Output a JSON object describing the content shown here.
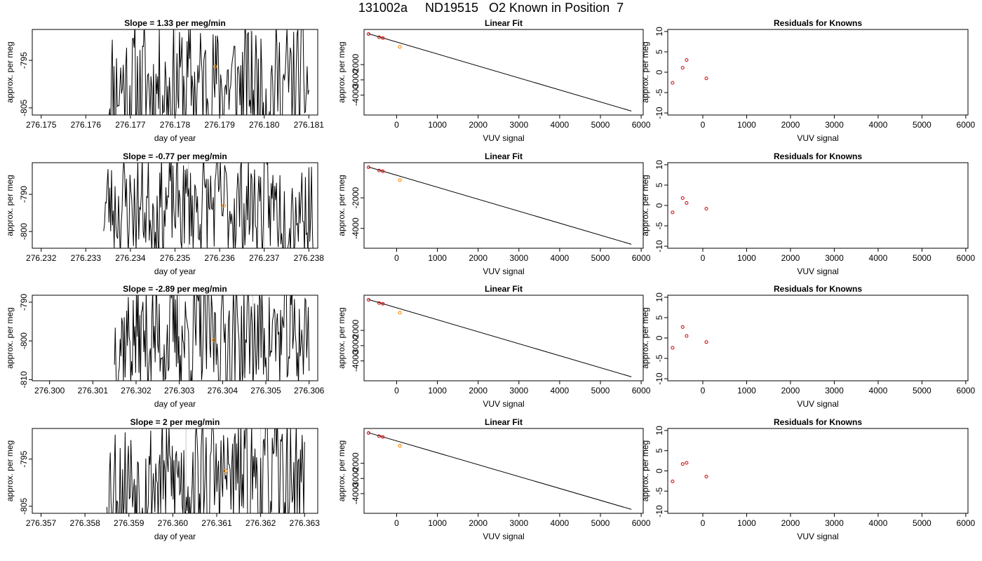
{
  "figure": {
    "title": "131002a     ND19515   O2 Known in Position  7"
  },
  "colors": {
    "line": "#000000",
    "fit_point": "#ff8c00",
    "residual_point": "#cc0000",
    "gridline": "#c8c8c8"
  },
  "chart_data": [
    {
      "type": "line",
      "title": "Slope =  1.33  per meg/min",
      "xlabel": "day of year",
      "ylabel": "approx. per meg",
      "xlim": [
        276.1748,
        276.1812
      ],
      "ylim": [
        -806.5,
        -788.5
      ],
      "xticks": [
        "276.175",
        "276.176",
        "276.177",
        "276.178",
        "276.179",
        "276.180",
        "276.181"
      ],
      "xtick_values": [
        276.175,
        276.176,
        276.177,
        276.178,
        276.179,
        276.18,
        276.181
      ],
      "yticks": [
        "-805",
        "-795"
      ],
      "ytick_values": [
        -805,
        -795
      ],
      "vlines": [
        276.178,
        276.1797
      ],
      "series_start": 276.1765,
      "series_end": 276.181,
      "series_center": -800,
      "series_amplitude": 14,
      "seed": 11,
      "highlight_point": {
        "x": 276.1789,
        "y": -796.3
      }
    },
    {
      "type": "scatter",
      "title": "Linear Fit",
      "xlabel": "VUV signal",
      "ylabel": "approx. per meg",
      "xlim": [
        -800,
        6050
      ],
      "ylim": [
        -5300,
        300
      ],
      "xticks": [
        "0",
        "1000",
        "2000",
        "3000",
        "4000",
        "5000",
        "6000"
      ],
      "xtick_values": [
        0,
        1000,
        2000,
        3000,
        4000,
        5000,
        6000
      ],
      "yticks": [
        "-2000",
        "-3000",
        "-4000"
      ],
      "ytick_values": [
        -2000,
        -3000,
        -4000
      ],
      "points": [
        {
          "x": -690,
          "y": 0
        },
        {
          "x": -430,
          "y": -210
        },
        {
          "x": -340,
          "y": -260
        }
      ],
      "highlight_points": [
        {
          "x": 80,
          "y": -840
        }
      ],
      "fit_line": [
        {
          "x": -690,
          "y": 20
        },
        {
          "x": 5760,
          "y": -5040
        }
      ]
    },
    {
      "type": "scatter",
      "title": "Residuals for Knowns",
      "xlabel": "VUV signal",
      "ylabel": "approx. per meg",
      "xlim": [
        -800,
        6050
      ],
      "ylim": [
        -10.5,
        10.5
      ],
      "xticks": [
        "0",
        "1000",
        "2000",
        "3000",
        "4000",
        "5000",
        "6000"
      ],
      "xtick_values": [
        0,
        1000,
        2000,
        3000,
        4000,
        5000,
        6000
      ],
      "yticks": [
        "-10",
        "-5",
        "0",
        "5",
        "10"
      ],
      "ytick_values": [
        -10,
        -5,
        0,
        5,
        10
      ],
      "points": [
        {
          "x": -690,
          "y": -2.6
        },
        {
          "x": -460,
          "y": 1.1
        },
        {
          "x": -370,
          "y": 3.0
        },
        {
          "x": 80,
          "y": -1.5
        }
      ]
    },
    {
      "type": "line",
      "title": "Slope =  -0.77  per meg/min",
      "xlabel": "day of year",
      "ylabel": "approx. per meg",
      "xlim": [
        276.2318,
        276.2382
      ],
      "ylim": [
        -804.5,
        -781.5
      ],
      "xticks": [
        "276.232",
        "276.233",
        "276.234",
        "276.235",
        "276.236",
        "276.237",
        "276.238"
      ],
      "xtick_values": [
        276.232,
        276.233,
        276.234,
        276.235,
        276.236,
        276.237,
        276.238
      ],
      "yticks": [
        "-800",
        "-790"
      ],
      "ytick_values": [
        -800,
        -790
      ],
      "vlines": [
        276.2353,
        276.237
      ],
      "series_start": 276.2334,
      "series_end": 276.2381,
      "series_center": -793,
      "series_amplitude": 15,
      "seed": 23,
      "highlight_point": {
        "x": 276.2361,
        "y": -793.0
      }
    },
    {
      "type": "scatter",
      "title": "Linear Fit",
      "xlabel": "VUV signal",
      "ylabel": "approx. per meg",
      "xlim": [
        -800,
        6050
      ],
      "ylim": [
        -5300,
        300
      ],
      "xticks": [
        "0",
        "1000",
        "2000",
        "3000",
        "4000",
        "5000",
        "6000"
      ],
      "xtick_values": [
        0,
        1000,
        2000,
        3000,
        4000,
        5000,
        6000
      ],
      "yticks": [
        "-2000",
        "-4000"
      ],
      "ytick_values": [
        -2000,
        -4000
      ],
      "points": [
        {
          "x": -690,
          "y": 0
        },
        {
          "x": -430,
          "y": -210
        },
        {
          "x": -340,
          "y": -260
        }
      ],
      "highlight_points": [
        {
          "x": 80,
          "y": -840
        }
      ],
      "fit_line": [
        {
          "x": -690,
          "y": 20
        },
        {
          "x": 5760,
          "y": -5040
        }
      ]
    },
    {
      "type": "scatter",
      "title": "Residuals for Knowns",
      "xlabel": "VUV signal",
      "ylabel": "approx. per meg",
      "xlim": [
        -800,
        6050
      ],
      "ylim": [
        -10.5,
        10.5
      ],
      "xticks": [
        "0",
        "1000",
        "2000",
        "3000",
        "4000",
        "5000",
        "6000"
      ],
      "xtick_values": [
        0,
        1000,
        2000,
        3000,
        4000,
        5000,
        6000
      ],
      "yticks": [
        "-10",
        "-5",
        "0",
        "5",
        "10"
      ],
      "ytick_values": [
        -10,
        -5,
        0,
        5,
        10
      ],
      "points": [
        {
          "x": -690,
          "y": -1.7
        },
        {
          "x": -460,
          "y": 1.8
        },
        {
          "x": -370,
          "y": 0.6
        },
        {
          "x": 80,
          "y": -0.8
        }
      ]
    },
    {
      "type": "line",
      "title": "Slope =  -2.89  per meg/min",
      "xlabel": "day of year",
      "ylabel": "approx. per meg",
      "xlim": [
        276.2996,
        276.3062
      ],
      "ylim": [
        -810.3,
        -788.2
      ],
      "xticks": [
        "276.300",
        "276.301",
        "276.302",
        "276.303",
        "276.304",
        "276.305",
        "276.306"
      ],
      "xtick_values": [
        276.3,
        276.301,
        276.302,
        276.303,
        276.304,
        276.305,
        276.306
      ],
      "yticks": [
        "-810",
        "-800",
        "-790"
      ],
      "ytick_values": [
        -810,
        -800,
        -790
      ],
      "vlines": [
        276.303,
        276.3047
      ],
      "series_start": 276.3015,
      "series_end": 276.306,
      "series_center": -799,
      "series_amplitude": 16,
      "seed": 37,
      "highlight_point": {
        "x": 276.3038,
        "y": -799.8
      }
    },
    {
      "type": "scatter",
      "title": "Linear Fit",
      "xlabel": "VUV signal",
      "ylabel": "approx. per meg",
      "xlim": [
        -800,
        6050
      ],
      "ylim": [
        -5300,
        300
      ],
      "xticks": [
        "0",
        "1000",
        "2000",
        "3000",
        "4000",
        "5000",
        "6000"
      ],
      "xtick_values": [
        0,
        1000,
        2000,
        3000,
        4000,
        5000,
        6000
      ],
      "yticks": [
        "-2000",
        "-3000",
        "-4000"
      ],
      "ytick_values": [
        -2000,
        -3000,
        -4000
      ],
      "points": [
        {
          "x": -690,
          "y": 0
        },
        {
          "x": -430,
          "y": -210
        },
        {
          "x": -340,
          "y": -260
        }
      ],
      "highlight_points": [
        {
          "x": 80,
          "y": -840
        }
      ],
      "fit_line": [
        {
          "x": -690,
          "y": 20
        },
        {
          "x": 5760,
          "y": -5040
        }
      ]
    },
    {
      "type": "scatter",
      "title": "Residuals for Knowns",
      "xlabel": "VUV signal",
      "ylabel": "approx. per meg",
      "xlim": [
        -800,
        6050
      ],
      "ylim": [
        -10.5,
        10.5
      ],
      "xticks": [
        "0",
        "1000",
        "2000",
        "3000",
        "4000",
        "5000",
        "6000"
      ],
      "xtick_values": [
        0,
        1000,
        2000,
        3000,
        4000,
        5000,
        6000
      ],
      "yticks": [
        "-10",
        "-5",
        "0",
        "5",
        "10"
      ],
      "ytick_values": [
        -10,
        -5,
        0,
        5,
        10
      ],
      "points": [
        {
          "x": -690,
          "y": -2.4
        },
        {
          "x": -460,
          "y": 2.7
        },
        {
          "x": -370,
          "y": 0.5
        },
        {
          "x": 80,
          "y": -1.0
        }
      ]
    },
    {
      "type": "line",
      "title": "Slope =  2  per meg/min",
      "xlabel": "day of year",
      "ylabel": "approx. per meg",
      "xlim": [
        276.3568,
        276.3633
      ],
      "ylim": [
        -806.5,
        -788.5
      ],
      "xticks": [
        "276.357",
        "276.358",
        "276.359",
        "276.360",
        "276.361",
        "276.362",
        "276.363"
      ],
      "xtick_values": [
        276.357,
        276.358,
        276.359,
        276.36,
        276.361,
        276.362,
        276.363
      ],
      "yticks": [
        "-805",
        "-795"
      ],
      "ytick_values": [
        -805,
        -795
      ],
      "vlines": [
        276.3603,
        276.362
      ],
      "series_start": 276.3585,
      "series_end": 276.363,
      "series_center": -799,
      "series_amplitude": 14,
      "seed": 53,
      "highlight_point": {
        "x": 276.3612,
        "y": -797.5
      }
    },
    {
      "type": "scatter",
      "title": "Linear Fit",
      "xlabel": "VUV signal",
      "ylabel": "approx. per meg",
      "xlim": [
        -800,
        6050
      ],
      "ylim": [
        -5300,
        300
      ],
      "xticks": [
        "0",
        "1000",
        "2000",
        "3000",
        "4000",
        "5000",
        "6000"
      ],
      "xtick_values": [
        0,
        1000,
        2000,
        3000,
        4000,
        5000,
        6000
      ],
      "yticks": [
        "-2000",
        "-3000",
        "-4000"
      ],
      "ytick_values": [
        -2000,
        -3000,
        -4000
      ],
      "points": [
        {
          "x": -690,
          "y": 0
        },
        {
          "x": -430,
          "y": -210
        },
        {
          "x": -340,
          "y": -260
        }
      ],
      "highlight_points": [
        {
          "x": 80,
          "y": -840
        }
      ],
      "fit_line": [
        {
          "x": -690,
          "y": 20
        },
        {
          "x": 5760,
          "y": -5040
        }
      ]
    },
    {
      "type": "scatter",
      "title": "Residuals for Knowns",
      "xlabel": "VUV signal",
      "ylabel": "approx. per meg",
      "xlim": [
        -800,
        6050
      ],
      "ylim": [
        -10.5,
        10.5
      ],
      "xticks": [
        "0",
        "1000",
        "2000",
        "3000",
        "4000",
        "5000",
        "6000"
      ],
      "xtick_values": [
        0,
        1000,
        2000,
        3000,
        4000,
        5000,
        6000
      ],
      "yticks": [
        "-10",
        "-5",
        "0",
        "5",
        "10"
      ],
      "ytick_values": [
        -10,
        -5,
        0,
        5,
        10
      ],
      "points": [
        {
          "x": -690,
          "y": -2.6
        },
        {
          "x": -460,
          "y": 1.7
        },
        {
          "x": -370,
          "y": 2.0
        },
        {
          "x": 80,
          "y": -1.4
        }
      ]
    }
  ]
}
